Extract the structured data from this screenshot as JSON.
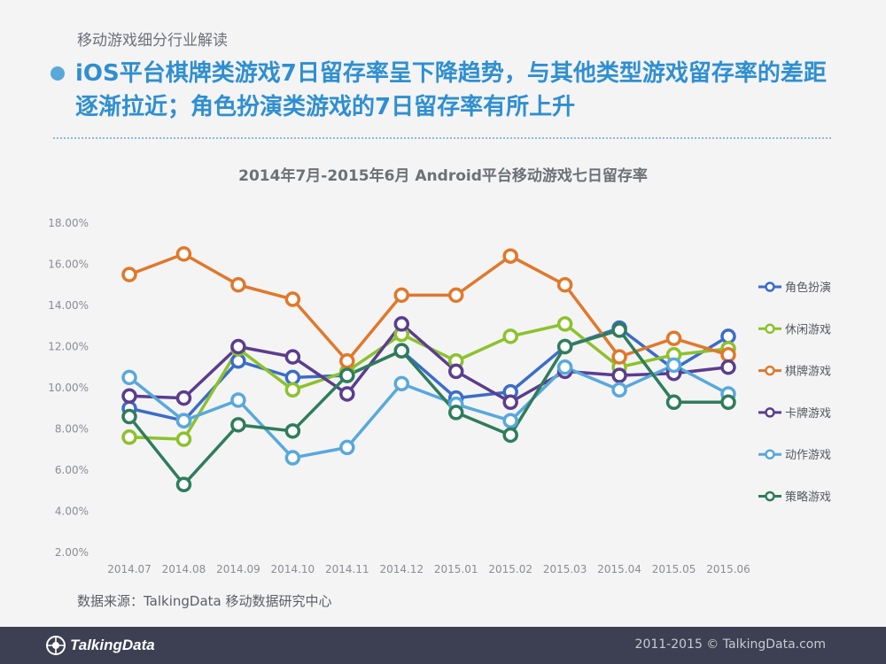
{
  "header": {
    "breadcrumb": "移动游戏细分行业解读",
    "headline": "iOS平台棋牌类游戏7日留存率呈下降趋势，与其他类型游戏留存率的差距逐渐拉近；角色扮演类游戏的7日留存率有所上升"
  },
  "chart_data": {
    "type": "line",
    "title": "2014年7月-2015年6月 Android平台移动游戏七日留存率",
    "categories": [
      "2014.07",
      "2014.08",
      "2014.09",
      "2014.10",
      "2014.11",
      "2014.12",
      "2015.01",
      "2015.02",
      "2015.03",
      "2015.04",
      "2015.05",
      "2015.06"
    ],
    "ylim": [
      2,
      18
    ],
    "y_ticks": [
      "2.00%",
      "4.00%",
      "6.00%",
      "8.00%",
      "10.00%",
      "12.00%",
      "14.00%",
      "16.00%",
      "18.00%"
    ],
    "y_format": "percent",
    "grid": false,
    "legend_position": "right",
    "series": [
      {
        "name": "角色扮演",
        "color": "#3b6cc9",
        "values": [
          9.0,
          8.4,
          11.3,
          10.5,
          10.6,
          11.8,
          9.5,
          9.8,
          12.0,
          12.9,
          10.9,
          12.5
        ]
      },
      {
        "name": "休闲游戏",
        "color": "#8cc22c",
        "values": [
          7.6,
          7.5,
          11.9,
          9.9,
          10.8,
          12.6,
          11.3,
          12.5,
          13.1,
          11.0,
          11.6,
          11.9
        ]
      },
      {
        "name": "棋牌游戏",
        "color": "#e0782b",
        "values": [
          15.5,
          16.5,
          15.0,
          14.3,
          11.3,
          14.5,
          14.5,
          16.4,
          15.0,
          11.5,
          12.4,
          11.6
        ]
      },
      {
        "name": "卡牌游戏",
        "color": "#5b3d8e",
        "values": [
          9.6,
          9.5,
          12.0,
          11.5,
          9.7,
          13.1,
          10.8,
          9.3,
          10.8,
          10.6,
          10.7,
          11.0
        ]
      },
      {
        "name": "动作游戏",
        "color": "#58a8dc",
        "values": [
          10.5,
          8.4,
          9.4,
          6.6,
          7.1,
          10.2,
          9.2,
          8.4,
          11.0,
          9.9,
          11.1,
          9.7
        ]
      },
      {
        "name": "策略游戏",
        "color": "#2f7d5a",
        "values": [
          8.6,
          5.3,
          8.2,
          7.9,
          10.6,
          11.8,
          8.8,
          7.7,
          12.0,
          12.8,
          9.3,
          9.3
        ]
      }
    ]
  },
  "footer": {
    "source": "数据来源：TalkingData 移动数据研究中心",
    "logo_text": "TalkingData",
    "copyright": "2011-2015 © TalkingData.com"
  }
}
